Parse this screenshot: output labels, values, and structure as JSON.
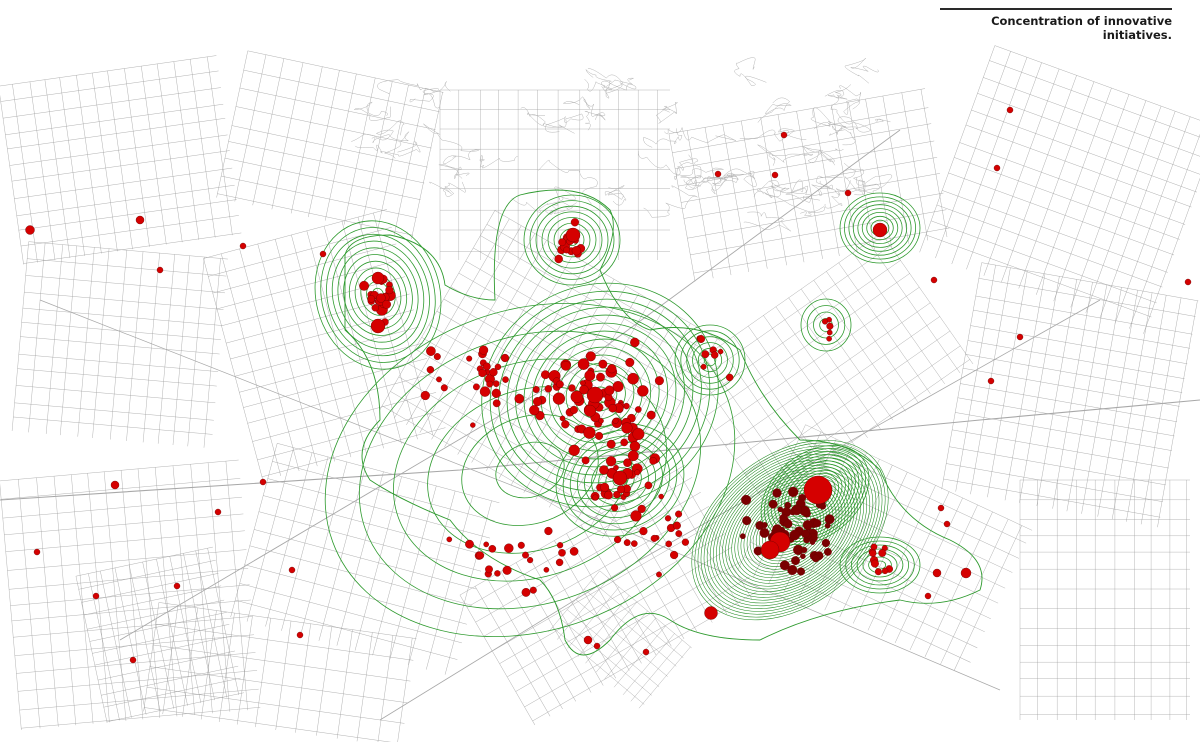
{
  "caption": {
    "line1": "Concentration of innovative",
    "line2": "initiatives."
  },
  "colors": {
    "background": "#ffffff",
    "streets": "#9a9a9a",
    "contour": "#2e9a2e",
    "contour_dense": "#1f8a1f",
    "initiative_dot": "#d50000",
    "initiative_dot_dark": "#7a0000"
  }
}
